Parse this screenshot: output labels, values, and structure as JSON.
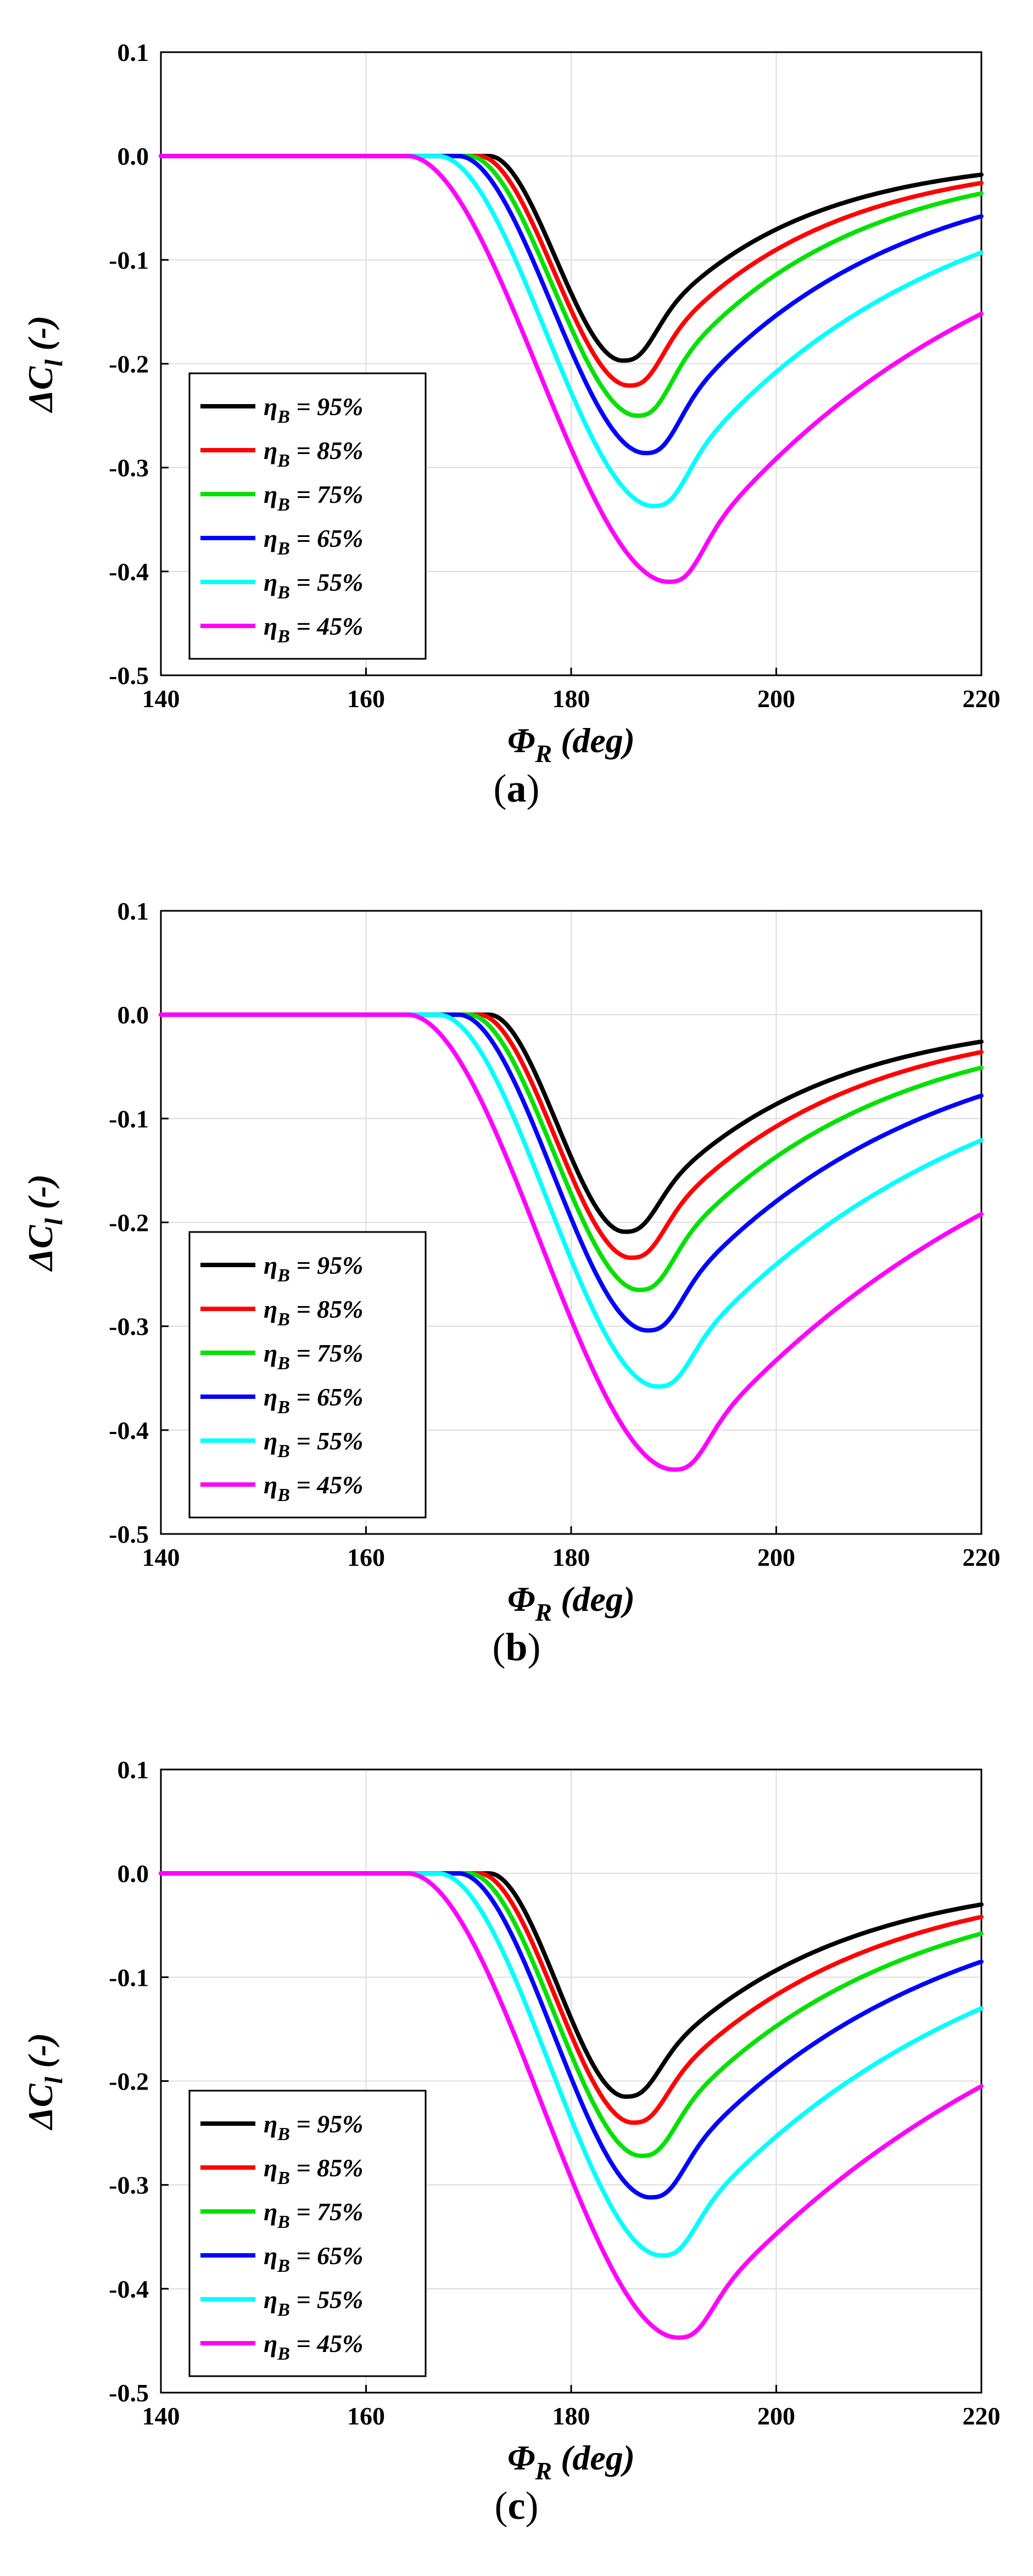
{
  "figure": {
    "captions": [
      "a",
      "b",
      "c"
    ]
  },
  "legend_labels": [
    "η_B = 95%",
    "η_B = 85%",
    "η_B = 75%",
    "η_B = 65%",
    "η_B = 55%",
    "η_B = 45%"
  ],
  "series_colors": [
    "#000000",
    "#ff0000",
    "#00e000",
    "#0000ff",
    "#00ffff",
    "#ff00ff"
  ],
  "chart_data": [
    {
      "type": "line",
      "panel": "a",
      "xlabel": "Φ_R (deg)",
      "ylabel": "ΔC_l (-)",
      "xlim": [
        140,
        220
      ],
      "ylim": [
        -0.5,
        0.1
      ],
      "xticks": [
        "140",
        "160",
        "180",
        "200",
        "220"
      ],
      "yticks": [
        "0.1",
        "0.0",
        "-0.1",
        "-0.2",
        "-0.3",
        "-0.4",
        "-0.5"
      ],
      "grid": true,
      "legend": "bottom-left",
      "series": [
        {
          "name": "η_B = 95%",
          "x0": 172.0,
          "xmin": 185.0,
          "ymin": -0.197,
          "yend": -0.018
        },
        {
          "name": "η_B = 85%",
          "x0": 171.0,
          "xmin": 185.6,
          "ymin": -0.221,
          "yend": -0.026
        },
        {
          "name": "η_B = 75%",
          "x0": 170.0,
          "xmin": 186.4,
          "ymin": -0.25,
          "yend": -0.036
        },
        {
          "name": "η_B = 65%",
          "x0": 169.0,
          "xmin": 187.2,
          "ymin": -0.286,
          "yend": -0.058
        },
        {
          "name": "η_B = 55%",
          "x0": 167.0,
          "xmin": 188.0,
          "ymin": -0.337,
          "yend": -0.093
        },
        {
          "name": "η_B = 45%",
          "x0": 164.0,
          "xmin": 189.5,
          "ymin": -0.41,
          "yend": -0.152
        }
      ]
    },
    {
      "type": "line",
      "panel": "b",
      "xlabel": "Φ_R (deg)",
      "ylabel": "ΔC_l (-)",
      "xlim": [
        140,
        220
      ],
      "ylim": [
        -0.5,
        0.1
      ],
      "xticks": [
        "140",
        "160",
        "180",
        "200",
        "220"
      ],
      "yticks": [
        "0.1",
        "0.0",
        "-0.1",
        "-0.2",
        "-0.3",
        "-0.4",
        "-0.5"
      ],
      "grid": true,
      "legend": "bottom-left",
      "series": [
        {
          "name": "η_B = 95%",
          "x0": 172.0,
          "xmin": 185.2,
          "ymin": -0.209,
          "yend": -0.026
        },
        {
          "name": "η_B = 85%",
          "x0": 171.0,
          "xmin": 185.8,
          "ymin": -0.234,
          "yend": -0.036
        },
        {
          "name": "η_B = 75%",
          "x0": 170.0,
          "xmin": 186.6,
          "ymin": -0.265,
          "yend": -0.051
        },
        {
          "name": "η_B = 65%",
          "x0": 169.0,
          "xmin": 187.4,
          "ymin": -0.304,
          "yend": -0.078
        },
        {
          "name": "η_B = 55%",
          "x0": 167.0,
          "xmin": 188.4,
          "ymin": -0.358,
          "yend": -0.121
        },
        {
          "name": "η_B = 45%",
          "x0": 164.0,
          "xmin": 190.0,
          "ymin": -0.438,
          "yend": -0.192
        }
      ]
    },
    {
      "type": "line",
      "panel": "c",
      "xlabel": "Φ_R (deg)",
      "ylabel": "ΔC_l (-)",
      "xlim": [
        140,
        220
      ],
      "ylim": [
        -0.5,
        0.1
      ],
      "xticks": [
        "140",
        "160",
        "180",
        "200",
        "220"
      ],
      "yticks": [
        "0.1",
        "0.0",
        "-0.1",
        "-0.2",
        "-0.3",
        "-0.4",
        "-0.5"
      ],
      "grid": true,
      "legend": "bottom-left",
      "series": [
        {
          "name": "η_B = 95%",
          "x0": 172.0,
          "xmin": 185.3,
          "ymin": -0.215,
          "yend": -0.03
        },
        {
          "name": "η_B = 85%",
          "x0": 171.0,
          "xmin": 186.0,
          "ymin": -0.24,
          "yend": -0.042
        },
        {
          "name": "η_B = 75%",
          "x0": 170.0,
          "xmin": 186.8,
          "ymin": -0.272,
          "yend": -0.058
        },
        {
          "name": "η_B = 65%",
          "x0": 169.0,
          "xmin": 187.7,
          "ymin": -0.312,
          "yend": -0.085
        },
        {
          "name": "η_B = 55%",
          "x0": 167.0,
          "xmin": 188.8,
          "ymin": -0.368,
          "yend": -0.13
        },
        {
          "name": "η_B = 45%",
          "x0": 164.0,
          "xmin": 190.4,
          "ymin": -0.447,
          "yend": -0.205
        }
      ]
    }
  ]
}
